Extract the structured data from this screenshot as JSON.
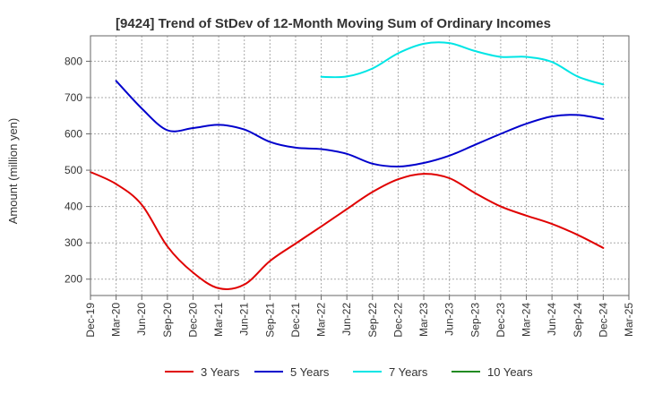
{
  "chart_data": {
    "type": "line",
    "title": "[9424]  Trend of StDev of 12-Month Moving Sum of Ordinary Incomes",
    "xlabel": "",
    "ylabel": "Amount (million yen)",
    "x_ticks": [
      "Dec-19",
      "Mar-20",
      "Jun-20",
      "Sep-20",
      "Dec-20",
      "Mar-21",
      "Jun-21",
      "Sep-21",
      "Dec-21",
      "Mar-22",
      "Jun-22",
      "Sep-22",
      "Dec-22",
      "Mar-23",
      "Jun-23",
      "Sep-23",
      "Dec-23",
      "Mar-24",
      "Jun-24",
      "Sep-24",
      "Dec-24",
      "Mar-25"
    ],
    "y_ticks": [
      200,
      300,
      400,
      500,
      600,
      700,
      800
    ],
    "ylim": [
      155,
      870
    ],
    "grid": true,
    "legend_position": "bottom",
    "series": [
      {
        "name": "3 Years",
        "color": "#e00000",
        "points": [
          [
            "Dec-19",
            495
          ],
          [
            "Mar-20",
            462
          ],
          [
            "Jun-20",
            405
          ],
          [
            "Sep-20",
            290
          ],
          [
            "Dec-20",
            218
          ],
          [
            "Mar-21",
            175
          ],
          [
            "Jun-21",
            185
          ],
          [
            "Sep-21",
            250
          ],
          [
            "Dec-21",
            298
          ],
          [
            "Mar-22",
            345
          ],
          [
            "Jun-22",
            393
          ],
          [
            "Sep-22",
            440
          ],
          [
            "Dec-22",
            475
          ],
          [
            "Mar-23",
            490
          ],
          [
            "Jun-23",
            478
          ],
          [
            "Sep-23",
            437
          ],
          [
            "Dec-23",
            400
          ],
          [
            "Mar-24",
            375
          ],
          [
            "Jun-24",
            352
          ],
          [
            "Sep-24",
            322
          ],
          [
            "Dec-24",
            286
          ]
        ]
      },
      {
        "name": "5 Years",
        "color": "#0000cc",
        "points": [
          [
            "Mar-20",
            746
          ],
          [
            "Jun-20",
            670
          ],
          [
            "Sep-20",
            610
          ],
          [
            "Dec-20",
            616
          ],
          [
            "Mar-21",
            625
          ],
          [
            "Jun-21",
            612
          ],
          [
            "Sep-21",
            578
          ],
          [
            "Dec-21",
            562
          ],
          [
            "Mar-22",
            558
          ],
          [
            "Jun-22",
            545
          ],
          [
            "Sep-22",
            518
          ],
          [
            "Dec-22",
            510
          ],
          [
            "Mar-23",
            520
          ],
          [
            "Jun-23",
            540
          ],
          [
            "Sep-23",
            570
          ],
          [
            "Dec-23",
            600
          ],
          [
            "Mar-24",
            628
          ],
          [
            "Jun-24",
            648
          ],
          [
            "Sep-24",
            652
          ],
          [
            "Dec-24",
            641
          ]
        ]
      },
      {
        "name": "7 Years",
        "color": "#00e5e5",
        "points": [
          [
            "Mar-22",
            757
          ],
          [
            "Jun-22",
            758
          ],
          [
            "Sep-22",
            780
          ],
          [
            "Dec-22",
            822
          ],
          [
            "Mar-23",
            848
          ],
          [
            "Jun-23",
            850
          ],
          [
            "Sep-23",
            828
          ],
          [
            "Dec-23",
            812
          ],
          [
            "Mar-24",
            812
          ],
          [
            "Jun-24",
            798
          ],
          [
            "Sep-24",
            758
          ],
          [
            "Dec-24",
            736
          ]
        ]
      },
      {
        "name": "10 Years",
        "color": "#228b22",
        "points": []
      }
    ]
  },
  "colors": {
    "frame": "#666666",
    "grid": "#aaaaaa",
    "text": "#333333"
  }
}
